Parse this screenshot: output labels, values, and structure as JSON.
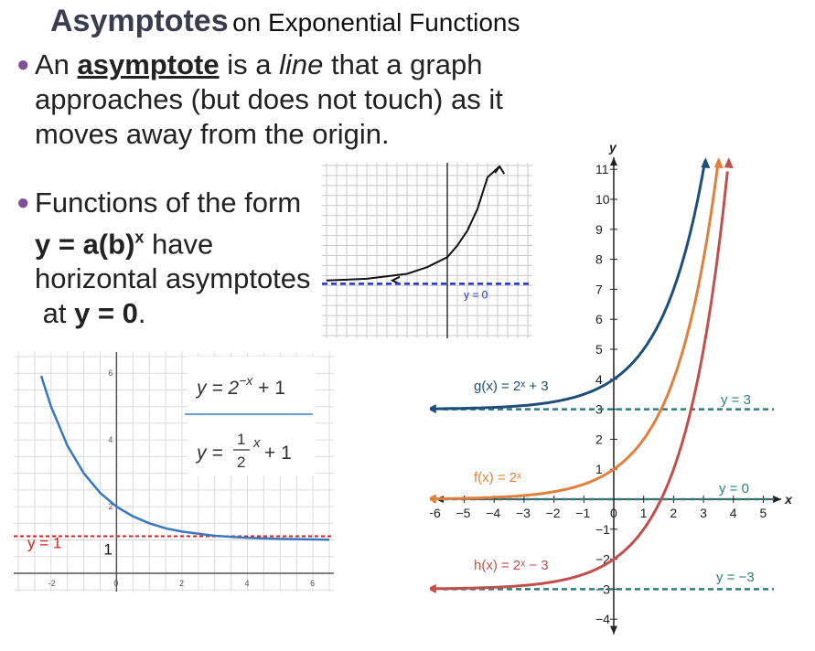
{
  "title": {
    "bold": "Asymptotes",
    "rest": "on Exponential Functions"
  },
  "bullet1": {
    "p1": "An",
    "keyword": "asymptote",
    "p2": "is a",
    "italic": "line",
    "p3": "that a graph approaches (but does not touch) as it moves away from the origin."
  },
  "bullet2": {
    "p1": "Functions of the form",
    "formula": "y = a(b)",
    "exp": "x",
    "p2": "have horizontal asymptotes",
    "p3": "at",
    "p4": "y = 0",
    "p5": "."
  },
  "colors": {
    "bullet": "#7f4f97",
    "g": "#1f4e79",
    "f": "#e0803e",
    "h": "#c0504d",
    "asym_dash": "#2f7d7e",
    "blue_curve": "#3a78bd",
    "red_dash": "#e02020"
  },
  "chart_data": [
    {
      "type": "line",
      "id": "small-grid",
      "xlim": [
        -6,
        4
      ],
      "ylim": [
        -3,
        7
      ],
      "grid": true,
      "series": [
        {
          "x": [
            -6,
            -4,
            -2,
            -1,
            0,
            0.5,
            1,
            1.5,
            2,
            2.6
          ],
          "y": [
            0.2,
            0.3,
            0.6,
            1.0,
            1.6,
            2.3,
            3.2,
            4.5,
            6.4,
            9.0
          ]
        }
      ],
      "asymptote": {
        "y": 0,
        "label": "y = 0"
      }
    },
    {
      "type": "line",
      "id": "bottom-left",
      "xlim": [
        -3,
        6.5
      ],
      "ylim": [
        0,
        6.5
      ],
      "grid": true,
      "x_ticks": [
        -2,
        0,
        2,
        4,
        6
      ],
      "y_ticks": [
        2,
        4,
        6
      ],
      "series": [
        {
          "x": [
            -2.3,
            -2,
            -1.5,
            -1,
            -0.5,
            0,
            0.5,
            1,
            1.5,
            2,
            3,
            4,
            5,
            6.5
          ],
          "y": [
            5.92,
            5.0,
            3.83,
            3.0,
            2.41,
            2.0,
            1.71,
            1.5,
            1.35,
            1.25,
            1.125,
            1.0625,
            1.03,
            1.01
          ]
        }
      ],
      "legend": {
        "line1": "y = 2",
        "line1_exp": "−x",
        "line1_tail": " + 1",
        "line2_a": "y =",
        "frac_num": "1",
        "frac_den": "2",
        "line2_exp": "x",
        "line2_tail": " + 1"
      },
      "asymptote": {
        "y": 1,
        "label": "y = 1",
        "label2": "1"
      }
    },
    {
      "type": "line",
      "id": "right-graph",
      "xlabel": "x",
      "ylabel": "y",
      "xlim": [
        -6,
        5
      ],
      "ylim": [
        -4,
        11
      ],
      "x_ticks": [
        "−6",
        "−5",
        "−4",
        "−3",
        "−2",
        "−1",
        "0",
        "1",
        "2",
        "3",
        "4",
        "5"
      ],
      "y_ticks": [
        "11",
        "10",
        "9",
        "8",
        "7",
        "6",
        "5",
        "4",
        "3",
        "2",
        "1",
        "−1",
        "−2",
        "−3",
        "−4"
      ],
      "series": [
        {
          "name": "g(x) = 2ˣ + 3",
          "base": 3
        },
        {
          "name": "f(x) = 2ˣ",
          "base": 0
        },
        {
          "name": "h(x) = 2ˣ − 3",
          "base": -3
        }
      ],
      "asymptotes": [
        {
          "y": 3,
          "label": "y = 3"
        },
        {
          "y": 0,
          "label": "y = 0"
        },
        {
          "y": -3,
          "label": "y = −3"
        }
      ]
    }
  ]
}
